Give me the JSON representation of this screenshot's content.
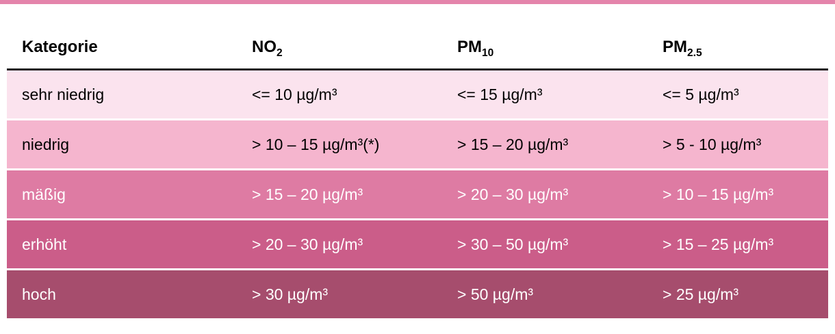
{
  "page": {
    "top_bar_color": "#e484ab",
    "header_rule_color": "#1f1f1f"
  },
  "chart_data": {
    "type": "table",
    "title": "",
    "columns": [
      "Kategorie",
      "NO2",
      "PM10",
      "PM2.5"
    ],
    "header": {
      "category": "Kategorie",
      "no2": {
        "base": "NO",
        "sub": "2"
      },
      "pm10": {
        "base": "PM",
        "sub": "10"
      },
      "pm25": {
        "base": "PM",
        "sub": "2.5"
      }
    },
    "rows": [
      {
        "category": "sehr niedrig",
        "no2": "<= 10 µg/m³",
        "pm10": "<= 15 µg/m³",
        "pm25": "<= 5 µg/m³",
        "bg": "#fbe3ee",
        "fg": "#000000"
      },
      {
        "category": "niedrig",
        "no2": "> 10 – 15 µg/m³(*)",
        "pm10": "> 15 – 20 µg/m³",
        "pm25": "> 5 - 10 µg/m³",
        "bg": "#f5b5ce",
        "fg": "#000000"
      },
      {
        "category": "mäßig",
        "no2": "> 15 – 20 µg/m³",
        "pm10": "> 20 – 30 µg/m³",
        "pm25": "> 10 – 15 µg/m³",
        "bg": "#de7ba3",
        "fg": "#ffffff"
      },
      {
        "category": "erhöht",
        "no2": "> 20 – 30 µg/m³",
        "pm10": "> 30 – 50 µg/m³",
        "pm25": "> 15 – 25 µg/m³",
        "bg": "#cb5d89",
        "fg": "#ffffff"
      },
      {
        "category": "hoch",
        "no2": "> 30 µg/m³",
        "pm10": "> 50 µg/m³",
        "pm25": "> 25 µg/m³",
        "bg": "#a64d6d",
        "fg": "#ffffff"
      }
    ]
  }
}
